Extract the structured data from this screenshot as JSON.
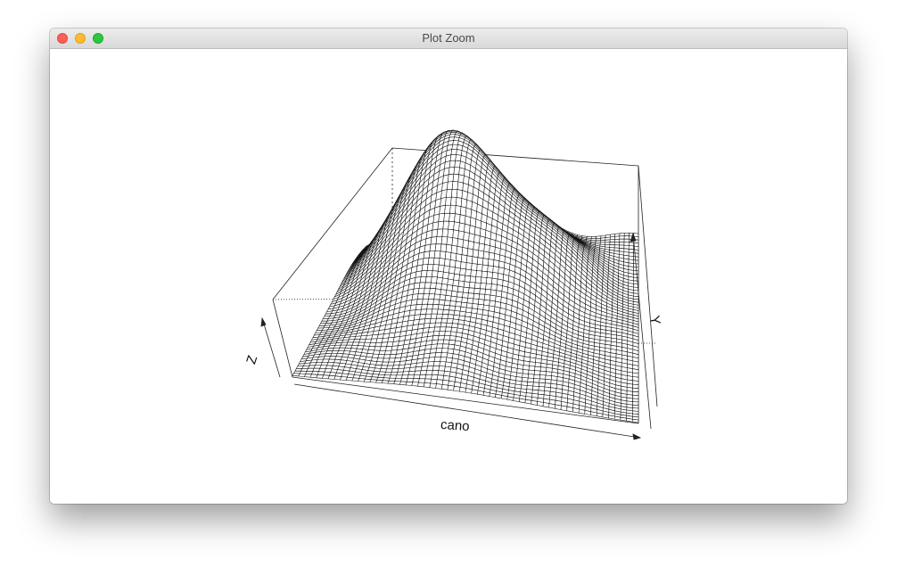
{
  "window": {
    "title": "Plot Zoom",
    "controls": [
      "close-button",
      "minimize-button",
      "zoom-button"
    ]
  },
  "plot": {
    "type": "3D perspective surface plot (wireframe)",
    "axes": {
      "x_label": "cano",
      "y_label": "Y",
      "z_label": "Z"
    }
  }
}
